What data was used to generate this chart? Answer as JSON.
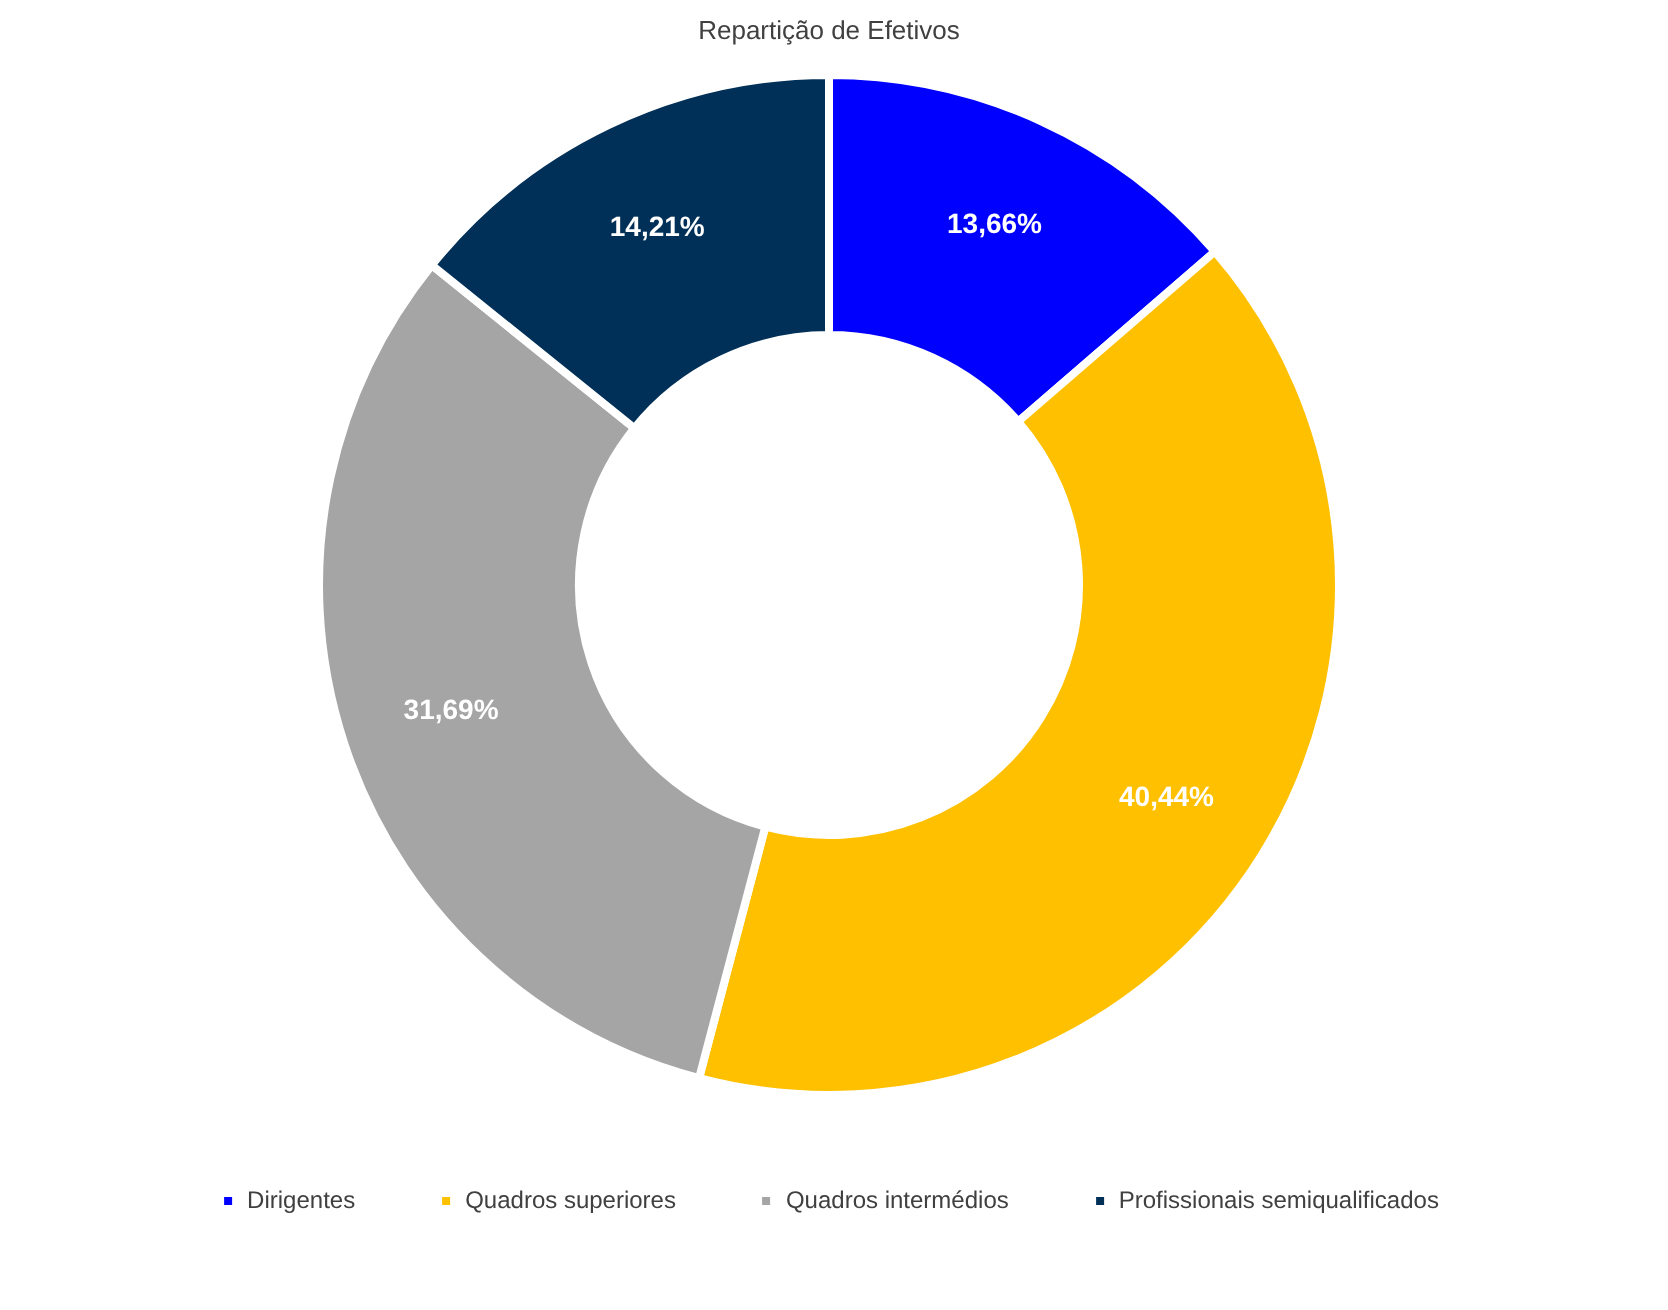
{
  "chart_data": {
    "type": "donut",
    "title": "Repartição de Efetivos",
    "categories": [
      "Dirigentes",
      "Quadros superiores",
      "Quadros intermédios",
      "Profissionais semiqualificados"
    ],
    "values": [
      13.66,
      40.44,
      31.69,
      14.21
    ],
    "colors": [
      "#0000ff",
      "#ffc000",
      "#a5a5a5",
      "#003057"
    ],
    "value_labels": [
      "13,66%",
      "40,44%",
      "31,69%",
      "14,21%"
    ],
    "legend": "bottom"
  }
}
